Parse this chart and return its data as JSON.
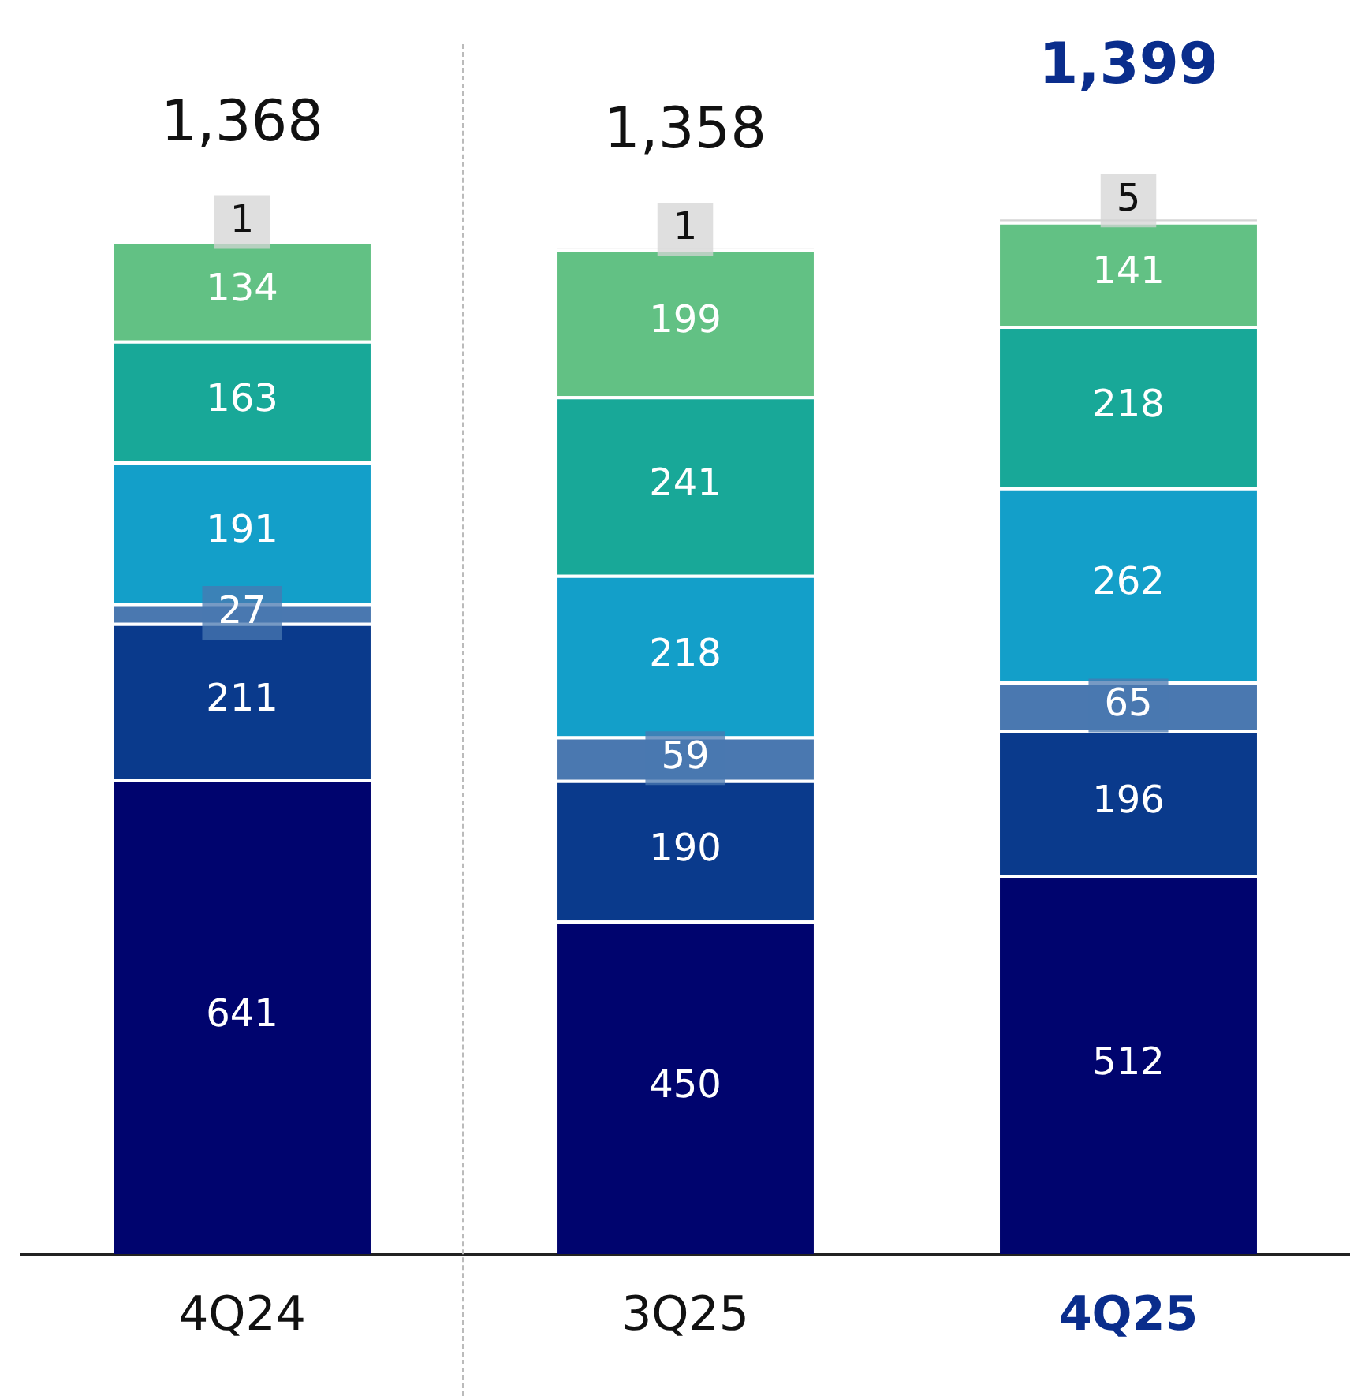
{
  "chart_data": {
    "type": "bar",
    "stacked": true,
    "categories": [
      "4Q24",
      "3Q25",
      "4Q25"
    ],
    "series": [
      {
        "color": "#00046e",
        "values": [
          641,
          450,
          512
        ]
      },
      {
        "color": "#0a3a8c",
        "values": [
          211,
          190,
          196
        ]
      },
      {
        "color": "#4a78b0",
        "values": [
          27,
          59,
          65
        ]
      },
      {
        "color": "#139fc9",
        "values": [
          191,
          218,
          262
        ]
      },
      {
        "color": "#18a898",
        "values": [
          163,
          241,
          218
        ]
      },
      {
        "color": "#62c184",
        "values": [
          134,
          199,
          141
        ]
      },
      {
        "color": "#d4d4d4",
        "values": [
          1,
          1,
          5
        ]
      }
    ],
    "data_labels": true,
    "totals": [
      "1,368",
      "1,358",
      "1,399"
    ],
    "legend": false,
    "grid": false
  }
}
